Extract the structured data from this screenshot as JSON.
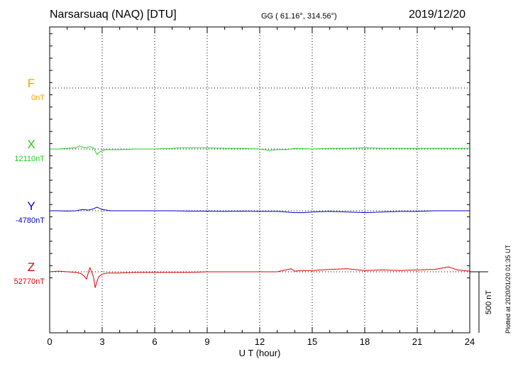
{
  "header": {
    "station": "Narsarsuaq (NAQ)  [DTU]",
    "coords": "GG ( 61.16°, 314.56°)",
    "date": "2019/12/20"
  },
  "footer": {
    "plotted": "Plotted at 2020/01/20 01:35 UT"
  },
  "chart_data": {
    "type": "line",
    "title": "Narsarsuaq (NAQ)  [DTU]",
    "xlabel": "U T (hour)",
    "xlim": [
      0,
      24
    ],
    "x_ticks": [
      0,
      3,
      6,
      9,
      12,
      15,
      18,
      21,
      24
    ],
    "x_tick_labels": [
      "0",
      "3",
      "6",
      "9",
      "12",
      "15",
      "18",
      "21",
      "24"
    ],
    "grid": true,
    "scale_bar": {
      "value": 500,
      "label": "500 nT"
    },
    "series": [
      {
        "name": "F",
        "baseline": "0nT",
        "baseline_value": 0,
        "color": "#f5a000",
        "x": [],
        "dev": []
      },
      {
        "name": "X",
        "baseline": "12110nT",
        "baseline_value": 12110,
        "color": "#22cc22",
        "x": [
          0,
          0.5,
          1,
          1.5,
          1.7,
          1.9,
          2.1,
          2.3,
          2.5,
          2.7,
          2.9,
          3.2,
          4,
          5,
          6,
          7,
          7.5,
          8,
          9,
          10,
          11,
          12,
          12.5,
          13,
          13.5,
          14,
          15,
          16,
          17,
          18,
          19,
          20,
          21,
          22,
          23,
          24
        ],
        "dev": [
          0,
          0,
          5,
          10,
          25,
          15,
          10,
          20,
          10,
          -45,
          -20,
          -5,
          -5,
          0,
          0,
          5,
          10,
          10,
          10,
          5,
          5,
          0,
          -10,
          -5,
          -5,
          5,
          0,
          5,
          5,
          10,
          5,
          5,
          5,
          5,
          5,
          5
        ]
      },
      {
        "name": "Y",
        "baseline": "-4780nT",
        "baseline_value": -4780,
        "color": "#0000cc",
        "x": [
          0,
          0.5,
          1,
          1.5,
          1.9,
          2.2,
          2.5,
          2.7,
          3,
          3.5,
          4,
          5,
          6,
          7,
          8,
          9,
          10,
          11,
          12,
          13,
          13.5,
          14,
          14.5,
          15,
          16,
          17,
          18,
          19,
          20,
          21,
          22,
          23,
          24
        ],
        "dev": [
          0,
          0,
          -3,
          0,
          10,
          5,
          15,
          30,
          10,
          0,
          0,
          0,
          0,
          0,
          -3,
          -3,
          -5,
          -3,
          -5,
          -5,
          -10,
          -15,
          -15,
          -10,
          -5,
          -10,
          -15,
          -10,
          -5,
          -5,
          0,
          0,
          0
        ]
      },
      {
        "name": "Z",
        "baseline": "52770nT",
        "baseline_value": 52770,
        "color": "#dd0000",
        "x": [
          0,
          0.5,
          1,
          1.5,
          1.8,
          2,
          2.1,
          2.3,
          2.5,
          2.6,
          2.7,
          2.8,
          3,
          3.3,
          4,
          5,
          6,
          7,
          8,
          9,
          10,
          11,
          12,
          13,
          13.8,
          14,
          14.3,
          15,
          16,
          17,
          18,
          19,
          20,
          21,
          22,
          22.8,
          23.3,
          24
        ],
        "dev": [
          0,
          5,
          0,
          -5,
          -15,
          -40,
          -60,
          35,
          -40,
          -130,
          -80,
          -40,
          -20,
          -10,
          -10,
          -5,
          -5,
          -5,
          -5,
          0,
          0,
          0,
          0,
          0,
          25,
          5,
          10,
          10,
          20,
          25,
          10,
          15,
          10,
          15,
          20,
          40,
          15,
          5
        ]
      }
    ]
  }
}
